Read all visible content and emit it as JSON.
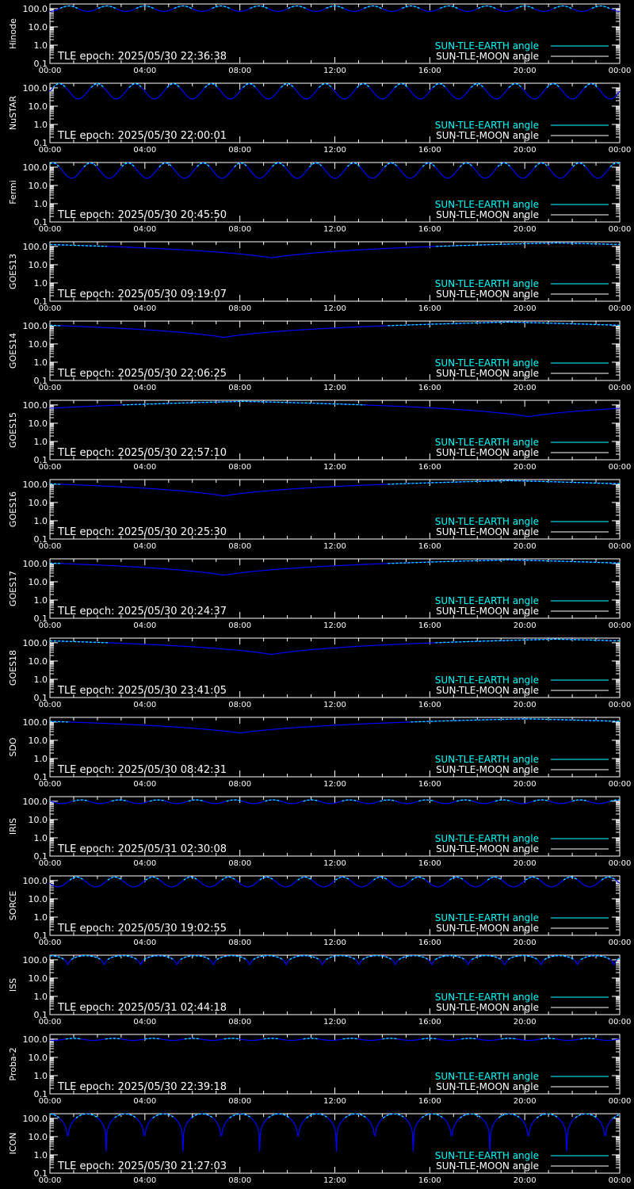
{
  "legend": {
    "earth_label": "SUN-TLE-EARTH angle",
    "moon_label": "SUN-TLE-MOON angle",
    "earth_color": "#00ffff",
    "moon_color": "#ffffff",
    "curve_color": "#0000ff"
  },
  "chart_data": [
    {
      "type": "line",
      "ylabel": "Hinode",
      "epoch": "TLE epoch: 2025/05/30 22:36:38",
      "x_ticks": [
        "00:00",
        "04:00",
        "08:00",
        "12:00",
        "16:00",
        "20:00",
        "00:00"
      ],
      "y_ticks": [
        "100.0",
        "10.0",
        "1.0",
        "0.1"
      ],
      "y_scale": "log",
      "ylim": [
        0.1,
        180
      ],
      "series": [
        {
          "name": "SUN-TLE-EARTH angle",
          "shape": "periodic",
          "period_min": 96,
          "phase_min": 0,
          "min": 70,
          "max": 140,
          "cusp": false
        }
      ]
    },
    {
      "type": "line",
      "ylabel": "NuSTAR",
      "epoch": "TLE epoch: 2025/05/30 22:00:01",
      "x_ticks": [
        "00:00",
        "04:00",
        "08:00",
        "12:00",
        "16:00",
        "20:00",
        "00:00"
      ],
      "y_ticks": [
        "100.0",
        "10.0",
        "1.0",
        "0.1"
      ],
      "y_scale": "log",
      "ylim": [
        0.1,
        180
      ],
      "series": [
        {
          "name": "SUN-TLE-EARTH angle",
          "shape": "periodic",
          "period_min": 96,
          "phase_min": 72,
          "min": 25,
          "max": 170,
          "cusp": false
        }
      ]
    },
    {
      "type": "line",
      "ylabel": "Fermi",
      "epoch": "TLE epoch: 2025/05/30 20:45:50",
      "x_ticks": [
        "00:00",
        "04:00",
        "08:00",
        "12:00",
        "16:00",
        "20:00",
        "00:00"
      ],
      "y_ticks": [
        "100.0",
        "10.0",
        "1.0",
        "0.1"
      ],
      "y_scale": "log",
      "ylim": [
        0.1,
        180
      ],
      "series": [
        {
          "name": "SUN-TLE-EARTH angle",
          "shape": "periodic",
          "period_min": 95,
          "phase_min": 55,
          "min": 25,
          "max": 170,
          "cusp": false
        }
      ]
    },
    {
      "type": "line",
      "ylabel": "GOES13",
      "epoch": "TLE epoch: 2025/05/30 09:19:07",
      "x_ticks": [
        "00:00",
        "04:00",
        "08:00",
        "12:00",
        "16:00",
        "20:00",
        "00:00"
      ],
      "y_ticks": [
        "100.0",
        "10.0",
        "1.0",
        "0.1"
      ],
      "y_scale": "log",
      "ylim": [
        0.1,
        180
      ],
      "series": [
        {
          "name": "SUN-TLE-EARTH angle",
          "shape": "daily",
          "min_time_min": 560,
          "min": 24,
          "max": 156
        }
      ]
    },
    {
      "type": "line",
      "ylabel": "GOES14",
      "epoch": "TLE epoch: 2025/05/30 22:06:25",
      "x_ticks": [
        "00:00",
        "04:00",
        "08:00",
        "12:00",
        "16:00",
        "20:00",
        "00:00"
      ],
      "y_ticks": [
        "100.0",
        "10.0",
        "1.0",
        "0.1"
      ],
      "y_scale": "log",
      "ylim": [
        0.1,
        180
      ],
      "series": [
        {
          "name": "SUN-TLE-EARTH angle",
          "shape": "daily",
          "min_time_min": 440,
          "min": 23,
          "max": 157
        }
      ]
    },
    {
      "type": "line",
      "ylabel": "GOES15",
      "epoch": "TLE epoch: 2025/05/30 22:57:10",
      "x_ticks": [
        "00:00",
        "04:00",
        "08:00",
        "12:00",
        "16:00",
        "20:00",
        "00:00"
      ],
      "y_ticks": [
        "100.0",
        "10.0",
        "1.0",
        "0.1"
      ],
      "y_scale": "log",
      "ylim": [
        0.1,
        180
      ],
      "series": [
        {
          "name": "SUN-TLE-EARTH angle",
          "shape": "daily",
          "min_time_min": 1210,
          "min": 23,
          "max": 157
        }
      ]
    },
    {
      "type": "line",
      "ylabel": "GOES16",
      "epoch": "TLE epoch: 2025/05/30 20:25:30",
      "x_ticks": [
        "00:00",
        "04:00",
        "08:00",
        "12:00",
        "16:00",
        "20:00",
        "00:00"
      ],
      "y_ticks": [
        "100.0",
        "10.0",
        "1.0",
        "0.1"
      ],
      "y_scale": "log",
      "ylim": [
        0.1,
        180
      ],
      "series": [
        {
          "name": "SUN-TLE-EARTH angle",
          "shape": "daily",
          "min_time_min": 440,
          "min": 23,
          "max": 157
        }
      ]
    },
    {
      "type": "line",
      "ylabel": "GOES17",
      "epoch": "TLE epoch: 2025/05/30 20:24:37",
      "x_ticks": [
        "00:00",
        "04:00",
        "08:00",
        "12:00",
        "16:00",
        "20:00",
        "00:00"
      ],
      "y_ticks": [
        "100.0",
        "10.0",
        "1.0",
        "0.1"
      ],
      "y_scale": "log",
      "ylim": [
        0.1,
        180
      ],
      "series": [
        {
          "name": "SUN-TLE-EARTH angle",
          "shape": "daily",
          "min_time_min": 440,
          "min": 23,
          "max": 157
        }
      ]
    },
    {
      "type": "line",
      "ylabel": "GOES18",
      "epoch": "TLE epoch: 2025/05/30 23:41:05",
      "x_ticks": [
        "00:00",
        "04:00",
        "08:00",
        "12:00",
        "16:00",
        "20:00",
        "00:00"
      ],
      "y_ticks": [
        "100.0",
        "10.0",
        "1.0",
        "0.1"
      ],
      "y_scale": "log",
      "ylim": [
        0.1,
        180
      ],
      "series": [
        {
          "name": "SUN-TLE-EARTH angle",
          "shape": "daily",
          "min_time_min": 560,
          "min": 23,
          "max": 157
        }
      ]
    },
    {
      "type": "line",
      "ylabel": "SDO",
      "epoch": "TLE epoch: 2025/05/30 08:42:31",
      "x_ticks": [
        "00:00",
        "04:00",
        "08:00",
        "12:00",
        "16:00",
        "20:00",
        "00:00"
      ],
      "y_ticks": [
        "100.0",
        "10.0",
        "1.0",
        "0.1"
      ],
      "y_scale": "log",
      "ylim": [
        0.1,
        180
      ],
      "series": [
        {
          "name": "SUN-TLE-EARTH angle",
          "shape": "daily",
          "min_time_min": 480,
          "min": 25,
          "max": 150
        }
      ]
    },
    {
      "type": "line",
      "ylabel": "IRIS",
      "epoch": "TLE epoch: 2025/05/31 02:30:08",
      "x_ticks": [
        "00:00",
        "04:00",
        "08:00",
        "12:00",
        "16:00",
        "20:00",
        "00:00"
      ],
      "y_ticks": [
        "100.0",
        "10.0",
        "1.0",
        "0.1"
      ],
      "y_scale": "log",
      "ylim": [
        0.1,
        180
      ],
      "series": [
        {
          "name": "SUN-TLE-EARTH angle",
          "shape": "periodic",
          "period_min": 97,
          "phase_min": 30,
          "min": 75,
          "max": 120,
          "cusp": false
        }
      ]
    },
    {
      "type": "line",
      "ylabel": "SORCE",
      "epoch": "TLE epoch: 2025/05/30 19:02:55",
      "x_ticks": [
        "00:00",
        "04:00",
        "08:00",
        "12:00",
        "16:00",
        "20:00",
        "00:00"
      ],
      "y_ticks": [
        "100.0",
        "10.0",
        "1.0",
        "0.1"
      ],
      "y_scale": "log",
      "ylim": [
        0.1,
        180
      ],
      "series": [
        {
          "name": "SUN-TLE-EARTH angle",
          "shape": "periodic",
          "period_min": 96,
          "phase_min": 20,
          "min": 45,
          "max": 155,
          "cusp": false
        }
      ]
    },
    {
      "type": "line",
      "ylabel": "ISS",
      "epoch": "TLE epoch: 2025/05/31 02:44:18",
      "x_ticks": [
        "00:00",
        "04:00",
        "08:00",
        "12:00",
        "16:00",
        "20:00",
        "00:00"
      ],
      "y_ticks": [
        "100.0",
        "10.0",
        "1.0",
        "0.1"
      ],
      "y_scale": "log",
      "ylim": [
        0.1,
        180
      ],
      "series": [
        {
          "name": "SUN-TLE-EARTH angle",
          "shape": "periodic",
          "period_min": 92,
          "phase_min": 45,
          "min": 25,
          "max": 168,
          "cusp": true
        }
      ]
    },
    {
      "type": "line",
      "ylabel": "Proba-2",
      "epoch": "TLE epoch: 2025/05/30 22:39:18",
      "x_ticks": [
        "00:00",
        "04:00",
        "08:00",
        "12:00",
        "16:00",
        "20:00",
        "00:00"
      ],
      "y_ticks": [
        "100.0",
        "10.0",
        "1.0",
        "0.1"
      ],
      "y_scale": "log",
      "ylim": [
        0.1,
        180
      ],
      "series": [
        {
          "name": "SUN-TLE-EARTH angle",
          "shape": "periodic",
          "period_min": 100,
          "phase_min": 10,
          "min": 85,
          "max": 110,
          "cusp": false
        }
      ]
    },
    {
      "type": "line",
      "ylabel": "ICON",
      "epoch": "TLE epoch: 2025/05/30 21:27:03",
      "x_ticks": [
        "00:00",
        "04:00",
        "08:00",
        "12:00",
        "16:00",
        "20:00",
        "00:00"
      ],
      "y_ticks": [
        "100.0",
        "10.0",
        "1.0",
        "0.1"
      ],
      "y_scale": "log",
      "ylim": [
        0.1,
        180
      ],
      "series": [
        {
          "name": "SUN-TLE-EARTH angle",
          "shape": "periodic",
          "period_min": 97,
          "phase_min": 45,
          "min": 1.5,
          "max": 175,
          "cusp": true
        }
      ]
    }
  ]
}
